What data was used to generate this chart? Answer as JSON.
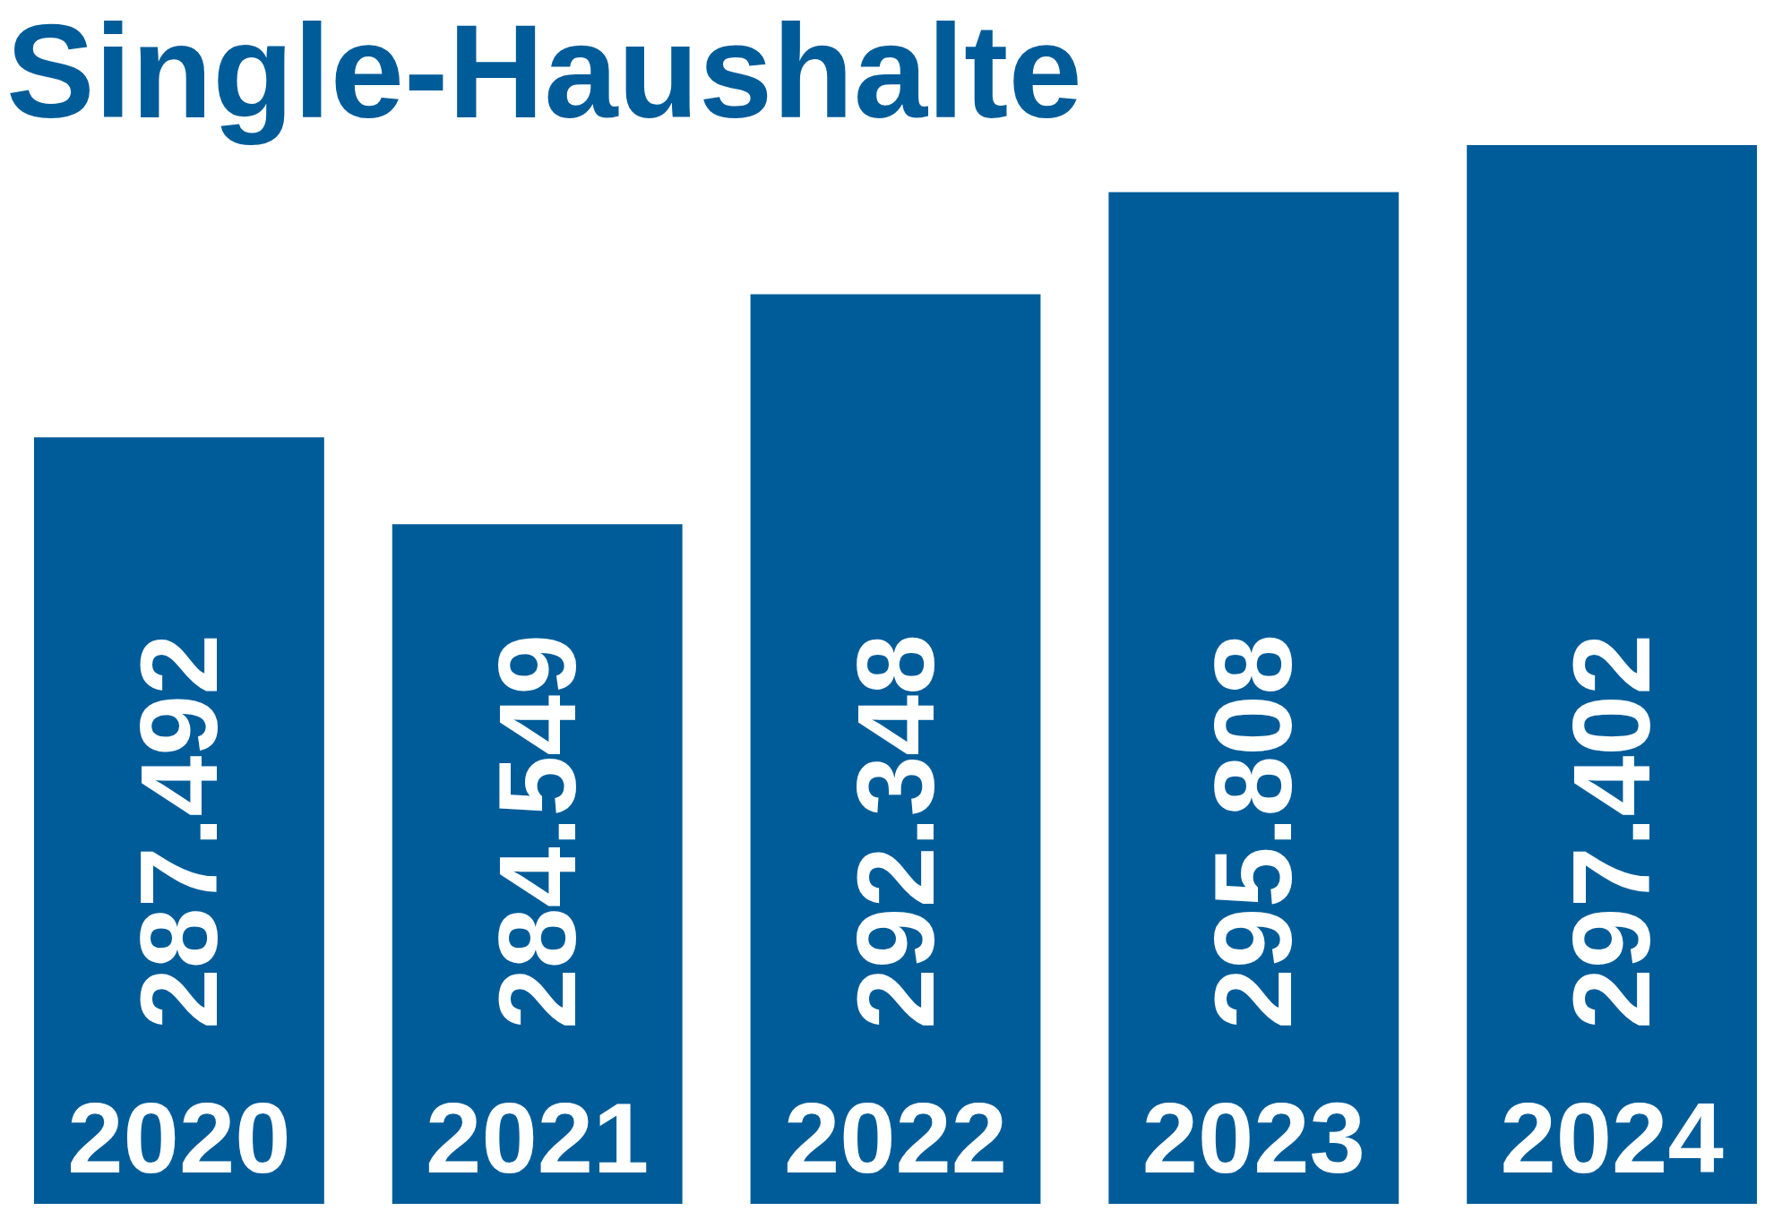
{
  "chart_data": {
    "type": "bar",
    "title": "Single-Haushalte",
    "categories": [
      "2020",
      "2021",
      "2022",
      "2023",
      "2024"
    ],
    "values": [
      287492,
      284549,
      292348,
      295808,
      297402
    ],
    "value_labels": [
      "287.492",
      "284.549",
      "292.348",
      "295.808",
      "297.402"
    ],
    "color": "#005c99",
    "ylim": [
      261500,
      297402
    ]
  }
}
